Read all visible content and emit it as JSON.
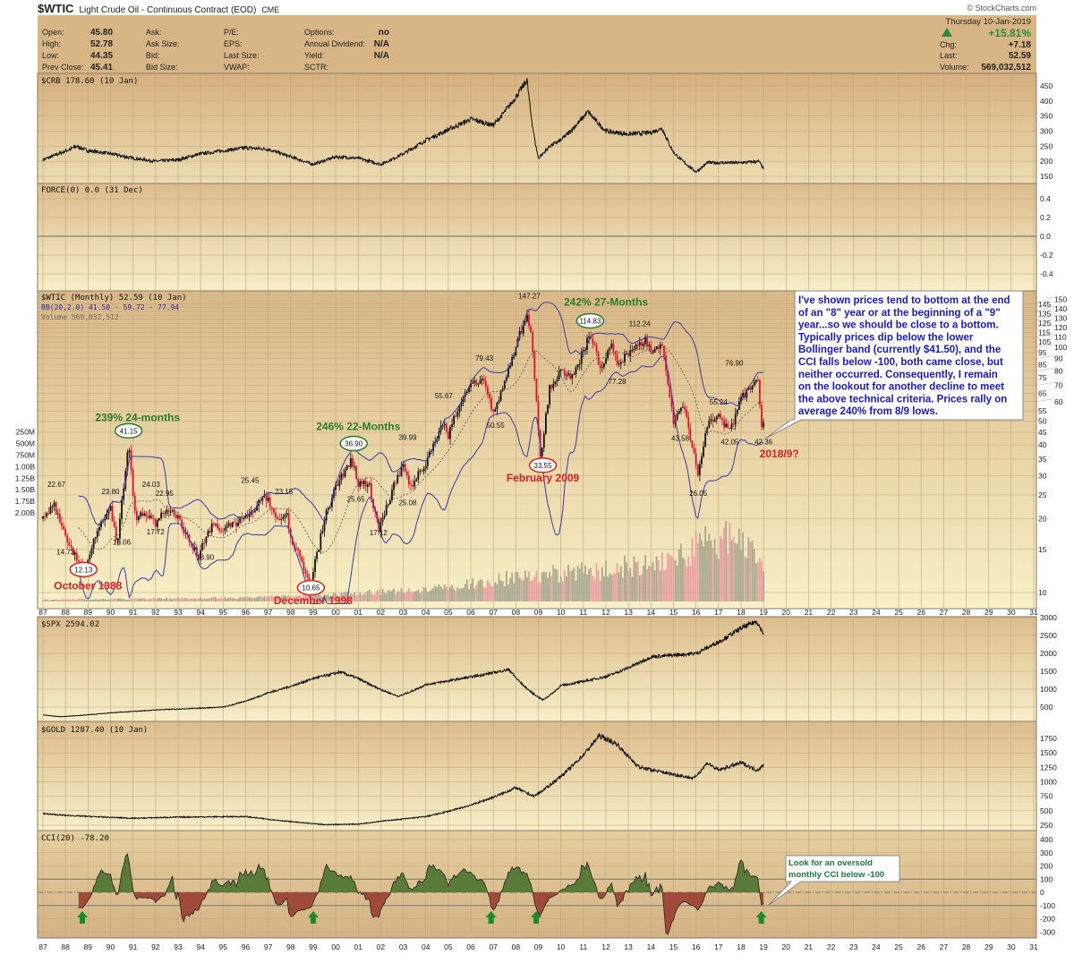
{
  "header": {
    "symbol": "$WTIC",
    "name": "Light Crude Oil - Continuous Contract (EOD)",
    "exchange": "CME",
    "copyright": "© StockCharts.com",
    "fields": [
      {
        "label": "Open:",
        "value": "45.80"
      },
      {
        "label": "High:",
        "value": "52.78"
      },
      {
        "label": "Low:",
        "value": "44.35"
      },
      {
        "label": "Prev Close:",
        "value": "45.41"
      }
    ],
    "col2": [
      "Ask:",
      "Ask Size:",
      "Bid:",
      "Bid Size:"
    ],
    "col3": [
      "P/E:",
      "EPS:",
      "Last Size:",
      "VWAP:"
    ],
    "col4": [
      {
        "label": "Options:",
        "value": "no"
      },
      {
        "label": "Annual Dividend:",
        "value": "N/A"
      },
      {
        "label": "Yield:",
        "value": "N/A"
      },
      {
        "label": "SCTR:",
        "value": ""
      }
    ],
    "date": "Thursday  10-Jan-2019",
    "pct_change": "+15.81%",
    "chg_label": "Chg:",
    "chg": "+7.18",
    "last_label": "Last:",
    "last": "52.59",
    "volume_label": "Volume:",
    "volume": "569,032,512",
    "up_color": "#2a8a3a"
  },
  "chart_data": [
    {
      "type": "line",
      "panel": "crb",
      "title": "$CRB 178.60 (10 Jan)",
      "yticks": [
        150,
        200,
        250,
        300,
        350,
        400,
        450
      ],
      "ylim": [
        150,
        470
      ],
      "points": [
        [
          1987,
          205
        ],
        [
          1988.5,
          250
        ],
        [
          1989,
          235
        ],
        [
          1990,
          225
        ],
        [
          1991,
          210
        ],
        [
          1992,
          200
        ],
        [
          1993,
          205
        ],
        [
          1994,
          225
        ],
        [
          1996,
          245
        ],
        [
          1997,
          240
        ],
        [
          1998,
          215
        ],
        [
          1999,
          190
        ],
        [
          2000,
          215
        ],
        [
          2001,
          210
        ],
        [
          2002,
          190
        ],
        [
          2003,
          225
        ],
        [
          2004,
          270
        ],
        [
          2005,
          305
        ],
        [
          2006,
          340
        ],
        [
          2007,
          320
        ],
        [
          2008.5,
          470
        ],
        [
          2009,
          210
        ],
        [
          2009.5,
          250
        ],
        [
          2010,
          270
        ],
        [
          2011.2,
          365
        ],
        [
          2012,
          300
        ],
        [
          2013,
          290
        ],
        [
          2014,
          295
        ],
        [
          2014.5,
          310
        ],
        [
          2015,
          230
        ],
        [
          2016,
          165
        ],
        [
          2016.5,
          195
        ],
        [
          2017,
          195
        ],
        [
          2018,
          195
        ],
        [
          2018.8,
          200
        ],
        [
          2019,
          176
        ]
      ]
    },
    {
      "type": "line",
      "panel": "force",
      "title": "FORCE(0) 0.0 (31 Dec)",
      "yticks": [
        "0.4",
        "0.2",
        "0.0",
        "-0.2",
        "-0.4"
      ],
      "ylim": [
        -0.5,
        0.5
      ]
    },
    {
      "type": "candlestick",
      "panel": "wtic",
      "title": "$WTIC (Monthly) 52.59 (10 Jan)",
      "bb_legend": "BB(20,2.0) 41.50 - 59.72 - 77.94",
      "volume_legend": "Volume 569,032,512",
      "scale": "log",
      "ylim": [
        10,
        150
      ],
      "yticks": [
        10,
        15,
        20,
        25,
        30,
        35,
        40,
        45,
        50,
        55,
        60,
        65,
        70,
        75,
        80,
        85,
        90,
        95,
        100,
        105,
        110,
        115,
        120,
        125,
        130,
        135,
        140,
        145,
        150
      ],
      "volume_ticks": [
        "2.00B",
        "1.75B",
        "1.50B",
        "1.25B",
        "1.00B",
        "750M",
        "500M",
        "250M"
      ],
      "points": [
        [
          1987,
          20
        ],
        [
          1987.5,
          22.6
        ],
        [
          1988,
          17
        ],
        [
          1988.8,
          12.1
        ],
        [
          1989.5,
          19
        ],
        [
          1990,
          22
        ],
        [
          1990.3,
          16
        ],
        [
          1990.8,
          41
        ],
        [
          1991.1,
          20
        ],
        [
          1991.5,
          21
        ],
        [
          1992,
          19
        ],
        [
          1992.5,
          22
        ],
        [
          1993,
          20
        ],
        [
          1993.9,
          14
        ],
        [
          1994.5,
          19
        ],
        [
          1995,
          18
        ],
        [
          1996,
          20
        ],
        [
          1996.8,
          25
        ],
        [
          1997,
          24
        ],
        [
          1997.3,
          20
        ],
        [
          1997.8,
          21
        ],
        [
          1998,
          17
        ],
        [
          1998.9,
          11
        ],
        [
          1999.5,
          20
        ],
        [
          2000,
          27
        ],
        [
          2000.7,
          35
        ],
        [
          2001,
          28
        ],
        [
          2001.5,
          27
        ],
        [
          2001.9,
          18
        ],
        [
          2002.5,
          26
        ],
        [
          2003,
          33
        ],
        [
          2003.3,
          27
        ],
        [
          2004,
          34
        ],
        [
          2004.8,
          50
        ],
        [
          2005,
          44
        ],
        [
          2005.7,
          66
        ],
        [
          2006.5,
          74
        ],
        [
          2007,
          54
        ],
        [
          2007.5,
          72
        ],
        [
          2008.5,
          140
        ],
        [
          2008.7,
          110
        ],
        [
          2009.1,
          35
        ],
        [
          2009.5,
          69
        ],
        [
          2010,
          80
        ],
        [
          2010.5,
          75
        ],
        [
          2011.3,
          113
        ],
        [
          2011.8,
          80
        ],
        [
          2012.2,
          105
        ],
        [
          2012.5,
          85
        ],
        [
          2013,
          95
        ],
        [
          2013.7,
          108
        ],
        [
          2014,
          95
        ],
        [
          2014.5,
          104
        ],
        [
          2015,
          50
        ],
        [
          2015.4,
          60
        ],
        [
          2015.9,
          37
        ],
        [
          2016.1,
          30
        ],
        [
          2016.5,
          48
        ],
        [
          2017,
          53
        ],
        [
          2017.5,
          45
        ],
        [
          2018,
          62
        ],
        [
          2018.75,
          75
        ],
        [
          2018.95,
          45
        ],
        [
          2019.03,
          52.6
        ]
      ],
      "volume_millions": [
        [
          1987,
          50
        ],
        [
          1995,
          100
        ],
        [
          2000,
          200
        ],
        [
          2005,
          400
        ],
        [
          2008,
          700
        ],
        [
          2012,
          900
        ],
        [
          2015,
          1300
        ],
        [
          2017,
          1800
        ],
        [
          2018,
          1700
        ],
        [
          2019,
          1000
        ]
      ],
      "price_labels": [
        {
          "text": "22.67",
          "year": 1987.6,
          "price": 27,
          "circled": false
        },
        {
          "text": "14.73",
          "year": 1988.0,
          "price": 14.3,
          "circled": false
        },
        {
          "text": "12.13",
          "year": 1988.8,
          "price": 12.1,
          "circled": true
        },
        {
          "text": "23.80",
          "year": 1990.0,
          "price": 25.2,
          "circled": false
        },
        {
          "text": "16.06",
          "year": 1990.5,
          "price": 15.7,
          "circled": false
        },
        {
          "text": "41.15",
          "year": 1990.8,
          "price": 44.5,
          "circled": true
        },
        {
          "text": "24.03",
          "year": 1991.8,
          "price": 25.5,
          "circled": false
        },
        {
          "text": "22.95",
          "year": 1992.4,
          "price": 24.8,
          "circled": false
        },
        {
          "text": "17.72",
          "year": 1992.0,
          "price": 17.3,
          "circled": false
        },
        {
          "text": "13.90",
          "year": 1994.2,
          "price": 13.6,
          "circled": false
        },
        {
          "text": "25.45",
          "year": 1996.2,
          "price": 28,
          "circled": false
        },
        {
          "text": "23.15",
          "year": 1997.7,
          "price": 25.2,
          "circled": false
        },
        {
          "text": "10.65",
          "year": 1998.9,
          "price": 10.2,
          "circled": true
        },
        {
          "text": "36.90",
          "year": 2000.8,
          "price": 39.5,
          "circled": true
        },
        {
          "text": "25.65",
          "year": 2000.9,
          "price": 23.5,
          "circled": false
        },
        {
          "text": "39.99",
          "year": 2003.2,
          "price": 43,
          "circled": false
        },
        {
          "text": "25.08",
          "year": 2003.2,
          "price": 22.7,
          "circled": false
        },
        {
          "text": "17.12",
          "year": 2001.9,
          "price": 17.1,
          "circled": false
        },
        {
          "text": "55.67",
          "year": 2004.8,
          "price": 62,
          "circled": false
        },
        {
          "text": "79.43",
          "year": 2006.6,
          "price": 88,
          "circled": false
        },
        {
          "text": "50.55",
          "year": 2007.1,
          "price": 47,
          "circled": false
        },
        {
          "text": "147.27",
          "year": 2008.6,
          "price": 158,
          "circled": false
        },
        {
          "text": "33.55",
          "year": 2009.2,
          "price": 32.2,
          "circled": true
        },
        {
          "text": "114.83",
          "year": 2011.3,
          "price": 125,
          "circled": true
        },
        {
          "text": "112.24",
          "year": 2013.5,
          "price": 122,
          "circled": false
        },
        {
          "text": "77.28",
          "year": 2012.5,
          "price": 71,
          "circled": false
        },
        {
          "text": "43.58",
          "year": 2015.3,
          "price": 41.5,
          "circled": false
        },
        {
          "text": "26.05",
          "year": 2016.1,
          "price": 24.8,
          "circled": false
        },
        {
          "text": "55.24",
          "year": 2017.0,
          "price": 58.5,
          "circled": false
        },
        {
          "text": "42.05",
          "year": 2017.5,
          "price": 40.2,
          "circled": false
        },
        {
          "text": "76.90",
          "year": 2017.7,
          "price": 84,
          "circled": false
        },
        {
          "text": "42.36",
          "year": 2019.0,
          "price": 40.2,
          "circled": false
        }
      ],
      "annotations": [
        {
          "text": "239% 24-months",
          "year": 1991.2,
          "price": 50,
          "color": "green"
        },
        {
          "text": "246% 22-Months",
          "year": 2001.0,
          "price": 46,
          "color": "green"
        },
        {
          "text": "242% 27-Months",
          "year": 2012.0,
          "price": 148,
          "color": "green"
        },
        {
          "text": "October 1988",
          "year": 1989.0,
          "price": 10.3,
          "color": "red"
        },
        {
          "text": "December 1998",
          "year": 1999.0,
          "price": 8.8,
          "color": "red"
        },
        {
          "text": "February 2009",
          "year": 2009.2,
          "price": 28.3,
          "color": "red"
        },
        {
          "text": "2018/9?",
          "year": 2019.7,
          "price": 35.6,
          "color": "red"
        }
      ],
      "note": [
        "I've shown prices tend to bottom at the end",
        "of an \"8\" year or at the beginning of a \"9\"",
        "year...so we should be close to a bottom.",
        "Typically prices dip below the lower",
        "Bollinger band (currently $41.50), and the",
        "CCI falls below -100, both came close, but",
        "neither occurred. Consequently, I remain",
        "on the lookout for another decline to meet",
        "the above technical criteria. Prices rally on",
        "average 240% from 8/9 lows."
      ]
    },
    {
      "type": "line",
      "panel": "spx",
      "title": "$SPX 2594.02",
      "yticks": [
        500,
        1000,
        1500,
        2000,
        2500,
        3000
      ],
      "ylim": [
        250,
        3000
      ],
      "points": [
        [
          1987,
          280
        ],
        [
          1987.8,
          230
        ],
        [
          1990,
          340
        ],
        [
          1992,
          420
        ],
        [
          1995,
          500
        ],
        [
          1997,
          900
        ],
        [
          1999,
          1300
        ],
        [
          2000.2,
          1480
        ],
        [
          2001,
          1300
        ],
        [
          2002.8,
          800
        ],
        [
          2004,
          1130
        ],
        [
          2007.7,
          1550
        ],
        [
          2009.2,
          700
        ],
        [
          2010,
          1100
        ],
        [
          2012,
          1350
        ],
        [
          2014,
          1900
        ],
        [
          2016,
          2000
        ],
        [
          2018,
          2700
        ],
        [
          2018.7,
          2900
        ],
        [
          2019,
          2550
        ]
      ]
    },
    {
      "type": "line",
      "panel": "gold",
      "title": "$GOLD 1287.40 (10 Jan)",
      "yticks": [
        250,
        500,
        750,
        1000,
        1250,
        1500,
        1750
      ],
      "ylim": [
        200,
        1900
      ],
      "points": [
        [
          1987,
          450
        ],
        [
          1988,
          420
        ],
        [
          1991,
          370
        ],
        [
          1993,
          390
        ],
        [
          1996,
          400
        ],
        [
          1999.5,
          260
        ],
        [
          2001,
          270
        ],
        [
          2002,
          320
        ],
        [
          2004,
          400
        ],
        [
          2006,
          600
        ],
        [
          2008,
          900
        ],
        [
          2008.8,
          750
        ],
        [
          2010,
          1100
        ],
        [
          2011.7,
          1800
        ],
        [
          2012.5,
          1650
        ],
        [
          2013.5,
          1250
        ],
        [
          2015.9,
          1060
        ],
        [
          2016.5,
          1330
        ],
        [
          2017,
          1200
        ],
        [
          2018,
          1330
        ],
        [
          2018.7,
          1200
        ],
        [
          2019,
          1287
        ]
      ]
    },
    {
      "type": "area",
      "panel": "cci",
      "title": "CCI(20) -78.20",
      "yticks": [
        400,
        300,
        200,
        100,
        0,
        -100,
        -200,
        -300
      ],
      "ylim": [
        -350,
        420
      ],
      "note": [
        "Look for an oversold",
        "monthly CCI below -100"
      ],
      "buy_arrows_years": [
        1988.75,
        1999.0,
        2006.9,
        2008.9,
        2018.9
      ]
    }
  ],
  "xaxis": {
    "start_year": 1987,
    "labels": [
      "87",
      "88",
      "89",
      "90",
      "91",
      "92",
      "93",
      "94",
      "95",
      "96",
      "97",
      "98",
      "99",
      "00",
      "01",
      "02",
      "03",
      "04",
      "05",
      "06",
      "07",
      "08",
      "09",
      "10",
      "11",
      "12",
      "13",
      "14",
      "15",
      "16",
      "17",
      "18",
      "19",
      "20",
      "21",
      "22",
      "23",
      "24",
      "25",
      "26",
      "27",
      "28",
      "29",
      "30",
      "31"
    ]
  },
  "colors": {
    "up": "#111111",
    "down": "#e0102a",
    "bb": "#3a3aa8",
    "cci_pos": "#5a7a3a",
    "cci_neg": "#a04a3a",
    "note_text": "#1818d8",
    "green_ann": "#2a7a2a",
    "red_ann": "#e02020"
  }
}
